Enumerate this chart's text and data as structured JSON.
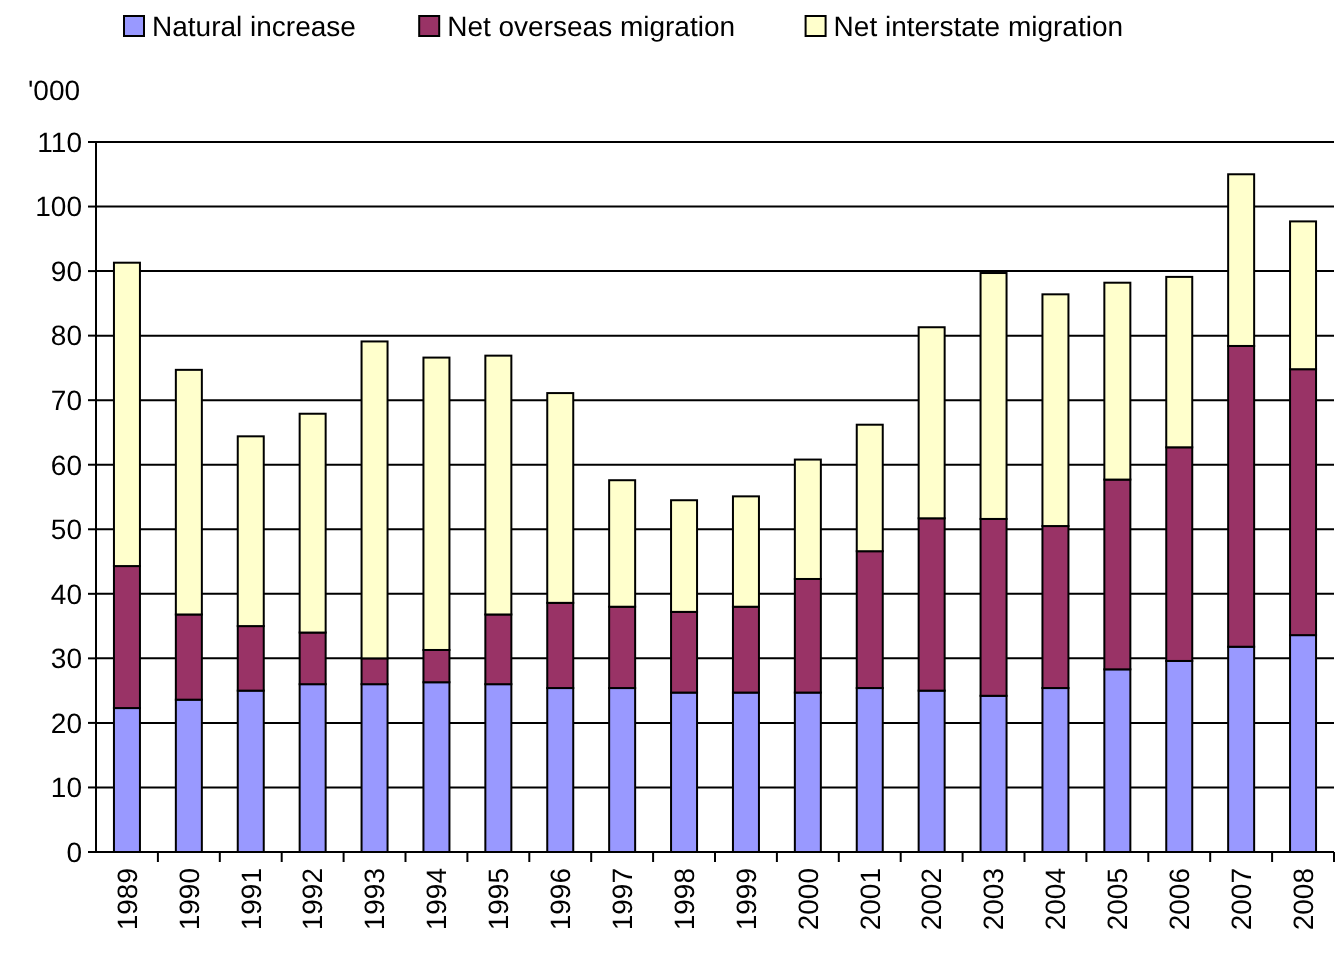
{
  "chart_data": {
    "type": "bar",
    "stacked": true,
    "ylabel": "'000",
    "categories": [
      "1989",
      "1990",
      "1991",
      "1992",
      "1993",
      "1994",
      "1995",
      "1996",
      "1997",
      "1998",
      "1999",
      "2000",
      "2001",
      "2002",
      "2003",
      "2004",
      "2005",
      "2006",
      "2007",
      "2008"
    ],
    "series": [
      {
        "name": "Natural increase",
        "color": "#9999ff",
        "values": [
          22.3,
          23.6,
          25,
          26,
          26,
          26.3,
          26,
          25.4,
          25.4,
          24.7,
          24.7,
          24.7,
          25.4,
          25,
          24.2,
          25.4,
          28.3,
          29.6,
          31.8,
          33.6
        ]
      },
      {
        "name": "Net overseas migration",
        "color": "#993366",
        "values": [
          22.0,
          13.2,
          10.0,
          8.0,
          4.0,
          5.0,
          10.8,
          13.2,
          12.6,
          12.5,
          13.3,
          17.6,
          21.2,
          26.7,
          27.4,
          25.1,
          29.4,
          33.1,
          46.6,
          41.2
        ]
      },
      {
        "name": "Net interstate migration",
        "color": "#ffffcc",
        "values": [
          47.0,
          37.9,
          29.4,
          33.9,
          49.1,
          45.3,
          40.1,
          32.5,
          19.6,
          17.3,
          17.1,
          18.5,
          19.6,
          29.6,
          38.1,
          35.9,
          30.5,
          26.4,
          26.6,
          22.9
        ]
      }
    ],
    "ylim": [
      0,
      110
    ],
    "yticks": [
      0,
      10,
      20,
      30,
      40,
      50,
      60,
      70,
      80,
      90,
      100,
      110
    ],
    "grid": "y",
    "legend": "top"
  }
}
